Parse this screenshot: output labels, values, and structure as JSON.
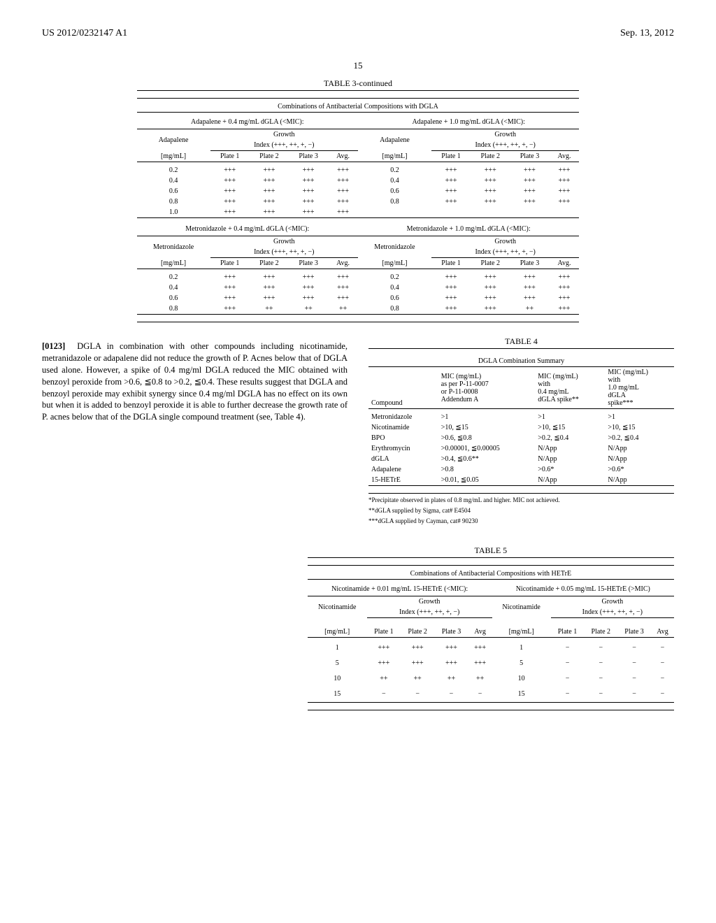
{
  "header": {
    "left": "US 2012/0232147 A1",
    "right": "Sep. 13, 2012"
  },
  "page_number": "15",
  "table3": {
    "title": "TABLE 3-continued",
    "subtitle": "Combinations of Antibacterial Compositions with DGLA",
    "sections": [
      {
        "left_header": "Adapalene + 0.4 mg/mL dGLA (<MIC):",
        "right_header": "Adapalene + 1.0 mg/mL dGLA (<MIC):",
        "compound": "Adapalene",
        "growth_label": "Growth",
        "index_label": "Index (+++, ++, +, −)",
        "unit": "[mg/mL]",
        "cols": [
          "Plate 1",
          "Plate 2",
          "Plate 3",
          "Avg."
        ],
        "left_rows": [
          [
            "0.2",
            "+++",
            "+++",
            "+++",
            "+++"
          ],
          [
            "0.4",
            "+++",
            "+++",
            "+++",
            "+++"
          ],
          [
            "0.6",
            "+++",
            "+++",
            "+++",
            "+++"
          ],
          [
            "0.8",
            "+++",
            "+++",
            "+++",
            "+++"
          ],
          [
            "1.0",
            "+++",
            "+++",
            "+++",
            "+++"
          ]
        ],
        "right_rows": [
          [
            "0.2",
            "+++",
            "+++",
            "+++",
            "+++"
          ],
          [
            "0.4",
            "+++",
            "+++",
            "+++",
            "+++"
          ],
          [
            "0.6",
            "+++",
            "+++",
            "+++",
            "+++"
          ],
          [
            "0.8",
            "+++",
            "+++",
            "+++",
            "+++"
          ]
        ]
      },
      {
        "left_header": "Metronidazole + 0.4 mg/mL dGLA (<MIC):",
        "right_header": "Metronidazole + 1.0 mg/mL dGLA (<MIC):",
        "compound": "Metronidazole",
        "growth_label": "Growth",
        "index_label": "Index (+++, ++, +, −)",
        "unit": "[mg/mL]",
        "cols": [
          "Plate 1",
          "Plate 2",
          "Plate 3",
          "Avg."
        ],
        "left_rows": [
          [
            "0.2",
            "+++",
            "+++",
            "+++",
            "+++"
          ],
          [
            "0.4",
            "+++",
            "+++",
            "+++",
            "+++"
          ],
          [
            "0.6",
            "+++",
            "+++",
            "+++",
            "+++"
          ],
          [
            "0.8",
            "+++",
            "++",
            "++",
            "++"
          ]
        ],
        "right_rows": [
          [
            "0.2",
            "+++",
            "+++",
            "+++",
            "+++"
          ],
          [
            "0.4",
            "+++",
            "+++",
            "+++",
            "+++"
          ],
          [
            "0.6",
            "+++",
            "+++",
            "+++",
            "+++"
          ],
          [
            "0.8",
            "+++",
            "+++",
            "++",
            "+++"
          ]
        ]
      }
    ]
  },
  "paragraph": {
    "num": "[0123]",
    "text": "DGLA in combination with other compounds including nicotinamide, metranidazole or adapalene did not reduce the growth of P. Acnes below that of DGLA used alone. However, a spike of 0.4 mg/ml DGLA reduced the MIC obtained with benzoyl peroxide from >0.6, ≦0.8 to >0.2, ≦0.4. These results suggest that DGLA and benzoyl peroxide may exhibit synergy since 0.4 mg/ml DGLA has no effect on its own but when it is added to benzoyl peroxide it is able to further decrease the growth rate of P. acnes below that of the DGLA single compound treatment (see, Table 4)."
  },
  "table4": {
    "title": "TABLE 4",
    "subtitle": "DGLA Combination Summary",
    "headers": {
      "c0": "Compound",
      "c1": "MIC (mg/mL)\nas per P-11-0007\nor P-11-0008\nAddendum A",
      "c2": "MIC (mg/mL)\nwith\n0.4 mg/mL\ndGLA spike**",
      "c3": "MIC (mg/mL)\nwith\n1.0 mg/mL\ndGLA\nspike***"
    },
    "rows": [
      [
        "Metronidazole",
        ">1",
        ">1",
        ">1"
      ],
      [
        "Nicotinamide",
        ">10, ≦15",
        ">10, ≦15",
        ">10, ≦15"
      ],
      [
        "BPO",
        ">0.6, ≦0.8",
        ">0.2, ≦0.4",
        ">0.2, ≦0.4"
      ],
      [
        "Erythromycin",
        ">0.00001, ≦0.00005",
        "N/App",
        "N/App"
      ],
      [
        "dGLA",
        ">0.4, ≦0.6**",
        "N/App",
        "N/App"
      ],
      [
        "Adapalene",
        ">0.8",
        ">0.6*",
        ">0.6*"
      ],
      [
        "15-HETrE",
        ">0.01, ≦0.05",
        "N/App",
        "N/App"
      ]
    ],
    "footnotes": [
      "*Precipitate observed in plates of 0.8 mg/mL and higher. MIC not achieved.",
      "**dGLA supplied by Sigma, cat# E4504",
      "***dGLA supplied by Cayman, cat# 90230"
    ]
  },
  "table5": {
    "title": "TABLE 5",
    "subtitle": "Combinations of Antibacterial Compositions with HETrE",
    "left_header": "Nicotinamide + 0.01 mg/mL 15-HETrE (<MIC):",
    "right_header": "Nicotinamide + 0.05 mg/mL 15-HETrE (>MIC)",
    "compound": "Nicotinamide",
    "growth_label": "Growth",
    "index_label": "Index (+++, ++, +, −)",
    "unit": "[mg/mL]",
    "cols": [
      "Plate 1",
      "Plate 2",
      "Plate 3",
      "Avg"
    ],
    "left_rows": [
      [
        "1",
        "+++",
        "+++",
        "+++",
        "+++"
      ],
      [
        "5",
        "+++",
        "+++",
        "+++",
        "+++"
      ],
      [
        "10",
        "++",
        "++",
        "++",
        "++"
      ],
      [
        "15",
        "−",
        "−",
        "−",
        "−"
      ]
    ],
    "right_rows": [
      [
        "1",
        "−",
        "−",
        "−",
        "−"
      ],
      [
        "5",
        "−",
        "−",
        "−",
        "−"
      ],
      [
        "10",
        "−",
        "−",
        "−",
        "−"
      ],
      [
        "15",
        "−",
        "−",
        "−",
        "−"
      ]
    ]
  }
}
